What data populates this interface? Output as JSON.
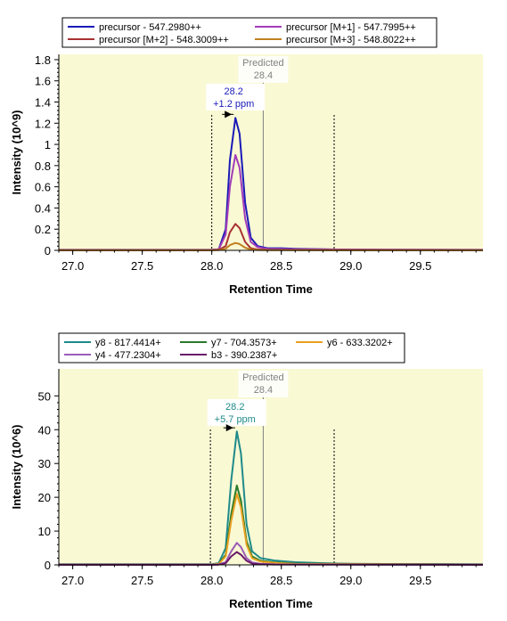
{
  "chart_data": [
    {
      "type": "line",
      "xlabel": "Retention Time",
      "ylabel": "Intensity (10^9)",
      "xlim": [
        26.9,
        29.95
      ],
      "ylim": [
        0,
        1.85
      ],
      "xticks": [
        "27.0",
        "27.5",
        "28.0",
        "28.5",
        "29.0",
        "29.5"
      ],
      "yticks": [
        "0",
        "0.2",
        "0.4",
        "0.6",
        "0.8",
        "1",
        "1.2",
        "1.4",
        "1.6",
        "1.8"
      ],
      "plot_background": "#f9f9d4",
      "legend_position": "top",
      "predicted": {
        "label": "Predicted",
        "value_label": "28.4",
        "x": 28.37
      },
      "integration_bounds": [
        28.0,
        28.88
      ],
      "peak_annotation": {
        "rt_label": "28.2",
        "ppm_label": "+1.2 ppm",
        "color": "#1a1ab8"
      },
      "series": [
        {
          "name": "precursor - 547.2980++",
          "color": "#1a1ab8",
          "x": [
            26.9,
            28.0,
            28.05,
            28.1,
            28.13,
            28.17,
            28.2,
            28.24,
            28.28,
            28.33,
            28.4,
            28.5,
            28.6,
            28.8,
            29.0,
            29.95
          ],
          "y": [
            0.005,
            0.005,
            0.01,
            0.2,
            0.85,
            1.25,
            1.1,
            0.45,
            0.12,
            0.04,
            0.02,
            0.02,
            0.015,
            0.01,
            0.005,
            0.005
          ]
        },
        {
          "name": "precursor [M+1] - 547.7995++",
          "color": "#a23db8",
          "x": [
            26.9,
            28.0,
            28.05,
            28.1,
            28.13,
            28.17,
            28.2,
            28.24,
            28.28,
            28.33,
            28.4,
            28.6,
            29.95
          ],
          "y": [
            0.004,
            0.004,
            0.01,
            0.15,
            0.6,
            0.9,
            0.78,
            0.3,
            0.08,
            0.03,
            0.015,
            0.01,
            0.004
          ]
        },
        {
          "name": "precursor [M+2] - 548.3009++",
          "color": "#a83232",
          "x": [
            26.9,
            28.0,
            28.05,
            28.1,
            28.13,
            28.17,
            28.2,
            28.24,
            28.28,
            28.33,
            28.4,
            29.95
          ],
          "y": [
            0.002,
            0.002,
            0.005,
            0.04,
            0.17,
            0.25,
            0.21,
            0.08,
            0.02,
            0.008,
            0.004,
            0.002
          ]
        },
        {
          "name": "precursor [M+3] - 548.8022++",
          "color": "#c08020",
          "x": [
            26.9,
            28.0,
            28.05,
            28.1,
            28.13,
            28.17,
            28.2,
            28.24,
            28.28,
            28.33,
            28.4,
            29.95
          ],
          "y": [
            0.001,
            0.001,
            0.002,
            0.015,
            0.05,
            0.07,
            0.06,
            0.025,
            0.008,
            0.003,
            0.002,
            0.001
          ]
        }
      ]
    },
    {
      "type": "line",
      "xlabel": "Retention Time",
      "ylabel": "Intensity (10^6)",
      "xlim": [
        26.9,
        29.95
      ],
      "ylim": [
        0,
        58
      ],
      "xticks": [
        "27.0",
        "27.5",
        "28.0",
        "28.5",
        "29.0",
        "29.5"
      ],
      "yticks": [
        "0",
        "10",
        "20",
        "30",
        "40",
        "50"
      ],
      "plot_background": "#f9f9d4",
      "legend_position": "top",
      "predicted": {
        "label": "Predicted",
        "value_label": "28.4",
        "x": 28.37
      },
      "integration_bounds": [
        27.99,
        28.88
      ],
      "peak_annotation": {
        "rt_label": "28.2",
        "ppm_label": "+5.7 ppm",
        "color": "#1f8a8a"
      },
      "series": [
        {
          "name": "y8 - 817.4414+",
          "color": "#1f8a8a",
          "x": [
            26.9,
            28.0,
            28.05,
            28.1,
            28.14,
            28.18,
            28.21,
            28.25,
            28.29,
            28.35,
            28.45,
            28.6,
            28.8,
            29.0,
            29.95
          ],
          "y": [
            0.2,
            0.2,
            0.5,
            5,
            25,
            39.5,
            33,
            12,
            4,
            2,
            1.3,
            0.8,
            0.5,
            0.3,
            0.2
          ]
        },
        {
          "name": "y7 - 704.3573+",
          "color": "#2a7a2a",
          "x": [
            26.9,
            28.0,
            28.05,
            28.1,
            28.14,
            28.18,
            28.21,
            28.25,
            28.29,
            28.35,
            28.45,
            28.6,
            29.95
          ],
          "y": [
            0.1,
            0.1,
            0.3,
            3,
            15,
            23.5,
            19,
            7,
            2.5,
            1.2,
            0.7,
            0.4,
            0.1
          ]
        },
        {
          "name": "y6 - 633.3202+",
          "color": "#e8a020",
          "x": [
            26.9,
            28.0,
            28.05,
            28.1,
            28.14,
            28.18,
            28.21,
            28.25,
            28.29,
            28.35,
            28.45,
            28.6,
            29.95
          ],
          "y": [
            0.1,
            0.1,
            0.3,
            2.5,
            13,
            21,
            17,
            6,
            2,
            1,
            0.6,
            0.3,
            0.1
          ]
        },
        {
          "name": "y4 - 477.2304+",
          "color": "#9a5cb8",
          "x": [
            26.9,
            28.0,
            28.05,
            28.1,
            28.14,
            28.18,
            28.21,
            28.25,
            28.29,
            28.35,
            28.45,
            29.95
          ],
          "y": [
            0.05,
            0.05,
            0.1,
            0.8,
            4,
            6.5,
            5.3,
            2,
            0.7,
            0.3,
            0.15,
            0.05
          ]
        },
        {
          "name": "b3 - 390.2387+",
          "color": "#6a1a6a",
          "x": [
            26.9,
            28.0,
            28.05,
            28.1,
            28.14,
            28.18,
            28.21,
            28.25,
            28.29,
            28.35,
            28.45,
            29.95
          ],
          "y": [
            0.03,
            0.03,
            0.08,
            0.5,
            2.5,
            3.8,
            3,
            1.2,
            0.4,
            0.2,
            0.1,
            0.03
          ]
        }
      ]
    }
  ]
}
